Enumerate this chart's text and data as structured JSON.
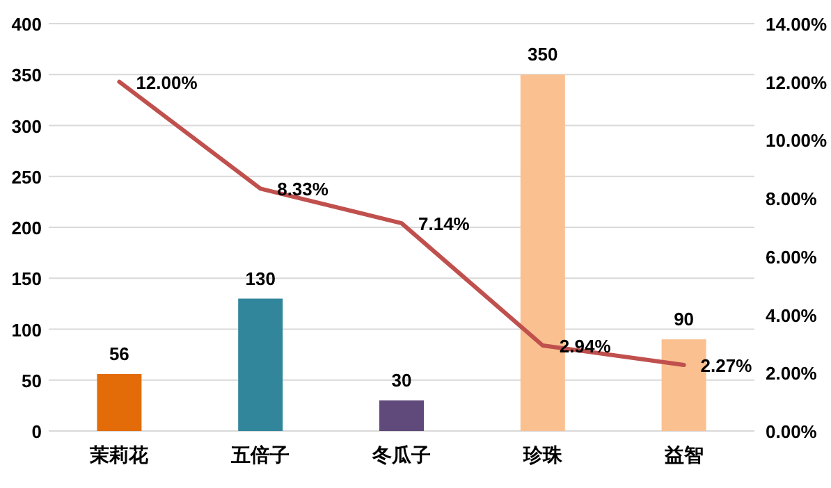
{
  "chart_data": {
    "type": "bar",
    "categories": [
      "茉莉花",
      "五倍子",
      "冬瓜子",
      "珍珠",
      "益智"
    ],
    "series": [
      {
        "colors": [
          "#e36c09",
          "#31869b",
          "#604a7b",
          "#fac090",
          "#fac090"
        ],
        "values": [
          56,
          130,
          30,
          350,
          90
        ],
        "value_labels": [
          "56",
          "130",
          "30",
          "350",
          "90"
        ]
      },
      {
        "type": "line",
        "axis": "y2",
        "color": "#c0504d",
        "values": [
          12.0,
          8.33,
          7.14,
          2.94,
          2.27
        ],
        "value_labels": [
          "12.00%",
          "8.33%",
          "7.14%",
          "2.94%",
          "2.27%"
        ],
        "marker": "none",
        "line_style": "solid"
      }
    ],
    "ylim": [
      0,
      400
    ],
    "yticks": [
      0,
      50,
      100,
      150,
      200,
      250,
      300,
      350,
      400
    ],
    "y2lim": [
      0,
      14
    ],
    "y2ticks": [
      {
        "value": 0,
        "label": "0.00%"
      },
      {
        "value": 2,
        "label": "2.00%"
      },
      {
        "value": 4,
        "label": "4.00%"
      },
      {
        "value": 6,
        "label": "6.00%"
      },
      {
        "value": 8,
        "label": "8.00%"
      },
      {
        "value": 10,
        "label": "10.00%"
      },
      {
        "value": 12,
        "label": "12.00%"
      },
      {
        "value": 14,
        "label": "14.00%"
      }
    ],
    "grid": "y"
  }
}
